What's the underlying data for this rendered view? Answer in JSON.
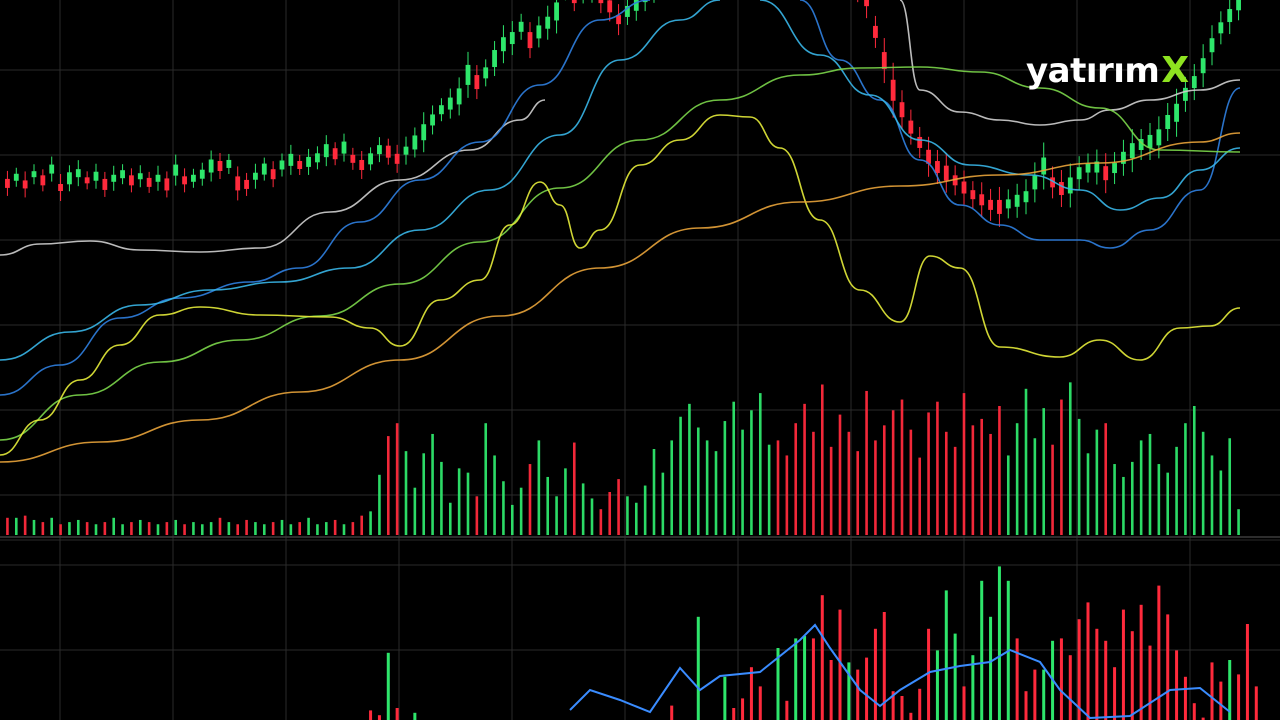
{
  "brand": {
    "name": "yatırım",
    "mark": "X",
    "name_color": "#ffffff",
    "mark_color": "#8ee320"
  },
  "colors": {
    "background": "#000000",
    "grid": "#2a2a2a",
    "up": "#2ee66b",
    "down": "#ff2a3c",
    "ma_white": "#cfcfcf",
    "ma_blue": "#2f7fe0",
    "ma_cyan": "#38b6e8",
    "ma_green": "#7bd64a",
    "ma_yellow": "#e6ec3a",
    "ma_orange": "#e8a33a",
    "osc_line": "#3a8cff"
  },
  "chart_data": {
    "type": "candlestick",
    "panels": [
      "price",
      "volume",
      "oscillator"
    ],
    "grid": true,
    "axes_labels": false,
    "candles_close": [
      280,
      286,
      279,
      289,
      283,
      294,
      276,
      285,
      290,
      283,
      287,
      279,
      285,
      289,
      283,
      287,
      281,
      285,
      279,
      293,
      283,
      285,
      289,
      297,
      297,
      299,
      280,
      279,
      287,
      294,
      289,
      298,
      303,
      298,
      301,
      305,
      312,
      309,
      315,
      304,
      298,
      304,
      313,
      311,
      304,
      312,
      320,
      330,
      342,
      352,
      358,
      365,
      386,
      379,
      388,
      402,
      416,
      422,
      433,
      420,
      428,
      437,
      448,
      476,
      462,
      470,
      475,
      461,
      453,
      440,
      448,
      455,
      462,
      474,
      477,
      486,
      501,
      512,
      531,
      548,
      560,
      585,
      602,
      611,
      629,
      642,
      645,
      633,
      624,
      621,
      608,
      598,
      592,
      568,
      540,
      510,
      482,
      460,
      428,
      400,
      371,
      352,
      335,
      320,
      306,
      296,
      290,
      283,
      276,
      269,
      264,
      259,
      257,
      260,
      263,
      267,
      281,
      297,
      281,
      275,
      278,
      290,
      295,
      296,
      290,
      295,
      305,
      312,
      318,
      321,
      325,
      340,
      349,
      367,
      379,
      395,
      415,
      432,
      444,
      455
    ],
    "candles_body": [
      9,
      7,
      8,
      6,
      10,
      9,
      7,
      12,
      8,
      6,
      9,
      11,
      7,
      8,
      10,
      6,
      9,
      7,
      12,
      11,
      8,
      7,
      9,
      13,
      10,
      8,
      14,
      9,
      7,
      11,
      10,
      9,
      12,
      8,
      10,
      9,
      13,
      11,
      12,
      8,
      10,
      11,
      9,
      12,
      10,
      8,
      14,
      16,
      11,
      9,
      12,
      16,
      20,
      14,
      11,
      17,
      14,
      12,
      10,
      16,
      13,
      12,
      18,
      15,
      12,
      11,
      14,
      10,
      12,
      9,
      11,
      13,
      10,
      12,
      14,
      15,
      13,
      16,
      12,
      18,
      21,
      14,
      17,
      20,
      23,
      18,
      14,
      13,
      16,
      11,
      12,
      14,
      10,
      18,
      13,
      15,
      19,
      14,
      12,
      17,
      21,
      15,
      13,
      11,
      14,
      12,
      15,
      10,
      12,
      9,
      11,
      10,
      14,
      9,
      12,
      11,
      14,
      17,
      10,
      13,
      16,
      12,
      9,
      11,
      14,
      10,
      12,
      15,
      11,
      13,
      16,
      14,
      18,
      13,
      12,
      15,
      14,
      11,
      13,
      12
    ],
    "candles_wick": [
      8,
      6,
      9,
      7,
      6,
      8,
      10,
      7,
      9,
      6,
      8,
      7,
      9,
      6,
      7,
      8,
      6,
      9,
      7,
      10,
      8,
      6,
      7,
      9,
      8,
      6,
      10,
      7,
      9,
      6,
      8,
      7,
      9,
      6,
      8,
      7,
      9,
      6,
      8,
      7,
      9,
      6,
      8,
      7,
      9,
      10,
      8,
      12,
      9,
      7,
      9,
      11,
      13,
      10,
      8,
      9,
      12,
      11,
      8,
      10,
      9,
      11,
      13,
      10,
      8,
      9,
      12,
      10,
      9,
      11,
      8,
      10,
      9,
      12,
      10,
      11,
      9,
      13,
      10,
      12,
      14,
      11,
      12,
      15,
      17,
      13,
      10,
      11,
      12,
      9,
      10,
      13,
      12,
      14,
      11,
      13,
      16,
      12,
      10,
      14,
      17,
      12,
      11,
      10,
      13,
      11,
      12,
      10,
      11,
      9,
      12,
      11,
      13,
      10,
      11,
      12,
      13,
      15,
      11,
      12,
      14,
      11,
      10,
      12,
      13,
      11,
      12,
      14,
      10,
      12,
      13,
      12,
      15,
      11,
      12,
      14,
      13,
      11,
      12,
      10
    ],
    "candles_dir": [
      "d",
      "u",
      "d",
      "u",
      "d",
      "u",
      "d",
      "u",
      "u",
      "d",
      "u",
      "d",
      "u",
      "u",
      "d",
      "u",
      "d",
      "u",
      "d",
      "u",
      "d",
      "u",
      "u",
      "u",
      "d",
      "u",
      "d",
      "d",
      "u",
      "u",
      "d",
      "u",
      "u",
      "d",
      "u",
      "u",
      "u",
      "d",
      "u",
      "d",
      "d",
      "u",
      "u",
      "d",
      "d",
      "u",
      "u",
      "u",
      "u",
      "u",
      "u",
      "u",
      "u",
      "d",
      "u",
      "u",
      "u",
      "u",
      "u",
      "d",
      "u",
      "u",
      "u",
      "u",
      "d",
      "u",
      "u",
      "d",
      "d",
      "d",
      "u",
      "u",
      "u",
      "u",
      "u",
      "u",
      "u",
      "u",
      "u",
      "u",
      "u",
      "u",
      "u",
      "u",
      "u",
      "u",
      "u",
      "d",
      "d",
      "d",
      "d",
      "d",
      "d",
      "d",
      "d",
      "d",
      "d",
      "d",
      "d",
      "d",
      "d",
      "d",
      "d",
      "d",
      "d",
      "d",
      "d",
      "d",
      "d",
      "d",
      "d",
      "d",
      "d",
      "u",
      "u",
      "u",
      "u",
      "u",
      "d",
      "d",
      "u",
      "u",
      "u",
      "u",
      "d",
      "u",
      "u",
      "u",
      "u",
      "u",
      "u",
      "u",
      "u",
      "u",
      "u",
      "u",
      "u",
      "u",
      "u",
      "u"
    ],
    "moving_averages": [
      {
        "color_key": "ma_white",
        "x": [
          0,
          40,
          90,
          140,
          200,
          260,
          330,
          400,
          470,
          520,
          545
        ],
        "y": [
          255,
          244,
          241,
          250,
          252,
          248,
          212,
          180,
          150,
          120,
          100
        ]
      },
      {
        "color_key": "ma_white",
        "x": [
          900,
          920,
          960,
          1000,
          1040,
          1080,
          1110,
          1150,
          1200,
          1240
        ],
        "y": [
          0,
          90,
          112,
          120,
          125,
          120,
          110,
          100,
          90,
          80
        ]
      },
      {
        "color_key": "ma_blue",
        "x": [
          0,
          60,
          120,
          180,
          250,
          300,
          360,
          420,
          480,
          540,
          600,
          650
        ],
        "y": [
          395,
          365,
          318,
          298,
          282,
          268,
          222,
          180,
          142,
          85,
          20,
          0
        ]
      },
      {
        "color_key": "ma_blue",
        "x": [
          800,
          840,
          880,
          920,
          960,
          1000,
          1040,
          1080,
          1110,
          1150,
          1200,
          1240
        ],
        "y": [
          0,
          60,
          100,
          160,
          205,
          225,
          240,
          240,
          248,
          230,
          190,
          88
        ]
      },
      {
        "color_key": "ma_cyan",
        "x": [
          0,
          70,
          140,
          210,
          280,
          350,
          420,
          490,
          560,
          620,
          680,
          720
        ],
        "y": [
          360,
          332,
          305,
          290,
          282,
          268,
          230,
          190,
          135,
          60,
          20,
          0
        ]
      },
      {
        "color_key": "ma_cyan",
        "x": [
          760,
          820,
          870,
          920,
          970,
          1030,
          1080,
          1120,
          1160,
          1200,
          1240
        ],
        "y": [
          0,
          55,
          95,
          140,
          165,
          175,
          190,
          210,
          198,
          170,
          148
        ]
      },
      {
        "color_key": "ma_green",
        "x": [
          0,
          80,
          160,
          240,
          320,
          400,
          480,
          560,
          640,
          720,
          800,
          860,
          920,
          980,
          1040,
          1100,
          1160,
          1240
        ],
        "y": [
          440,
          395,
          362,
          340,
          316,
          284,
          242,
          188,
          140,
          100,
          75,
          68,
          67,
          72,
          88,
          108,
          150,
          152
        ]
      },
      {
        "color_key": "ma_yellow",
        "x": [
          0,
          40,
          80,
          120,
          160,
          200,
          260,
          330,
          370,
          400,
          440,
          480,
          510,
          540,
          560,
          580,
          600,
          640,
          680,
          720,
          750,
          780,
          820,
          860,
          900,
          930,
          960,
          1000,
          1060,
          1100,
          1140,
          1180,
          1210,
          1240
        ],
        "y": [
          455,
          420,
          380,
          345,
          315,
          307,
          315,
          317,
          328,
          346,
          300,
          280,
          225,
          182,
          205,
          248,
          230,
          165,
          140,
          115,
          117,
          148,
          220,
          290,
          322,
          256,
          268,
          347,
          357,
          340,
          360,
          328,
          326,
          308
        ]
      },
      {
        "color_key": "ma_orange",
        "x": [
          0,
          100,
          200,
          300,
          400,
          500,
          600,
          700,
          800,
          900,
          1000,
          1100,
          1200,
          1240
        ],
        "y": [
          462,
          442,
          420,
          392,
          360,
          316,
          268,
          228,
          202,
          186,
          175,
          163,
          142,
          133
        ]
      }
    ],
    "volume": [
      8,
      8,
      9,
      7,
      6,
      8,
      5,
      6,
      7,
      6,
      5,
      6,
      8,
      5,
      6,
      7,
      6,
      5,
      6,
      7,
      5,
      6,
      5,
      6,
      8,
      6,
      5,
      7,
      6,
      5,
      6,
      7,
      5,
      6,
      8,
      5,
      6,
      7,
      5,
      6,
      9,
      11,
      28,
      46,
      52,
      39,
      22,
      38,
      47,
      34,
      15,
      31,
      29,
      18,
      52,
      37,
      25,
      14,
      22,
      33,
      44,
      27,
      18,
      31,
      43,
      24,
      17,
      12,
      20,
      26,
      18,
      15,
      23,
      40,
      29,
      44,
      55,
      61,
      50,
      44,
      39,
      53,
      62,
      49,
      58,
      66,
      42,
      44,
      37,
      52,
      61,
      48,
      70,
      41,
      56,
      48,
      39,
      67,
      44,
      51,
      58,
      63,
      49,
      36,
      57,
      62,
      48,
      41,
      66,
      51,
      54,
      47,
      60,
      37,
      52,
      68,
      45,
      59,
      42,
      63,
      71,
      54,
      38,
      49,
      52,
      33,
      27,
      34,
      44,
      47,
      33,
      29,
      41,
      52,
      60,
      48,
      37,
      30,
      45,
      12
    ],
    "oscillator": [
      0,
      0,
      0,
      0,
      0,
      0,
      0,
      0,
      0,
      0,
      0,
      0,
      0,
      0,
      0,
      0,
      0,
      0,
      0,
      0,
      0,
      0,
      0,
      0,
      0,
      0,
      0,
      0,
      0,
      0,
      0,
      0,
      0,
      0,
      0,
      0,
      0,
      0,
      0,
      0,
      0,
      -4,
      -2,
      28,
      -5,
      0,
      3,
      0,
      0,
      0,
      0,
      0,
      0,
      0,
      0,
      0,
      0,
      0,
      0,
      0,
      0,
      0,
      0,
      0,
      0,
      0,
      0,
      0,
      0,
      0,
      0,
      0,
      0,
      0,
      0,
      -6,
      0,
      0,
      43,
      0,
      0,
      18,
      -5,
      -9,
      -22,
      -14,
      0,
      30,
      -8,
      34,
      35,
      -34,
      -52,
      -25,
      -46,
      24,
      -21,
      -26,
      -38,
      -45,
      -12,
      -10,
      -3,
      -13,
      -38,
      29,
      54,
      36,
      -14,
      27,
      58,
      43,
      64,
      58,
      -34,
      -12,
      -21,
      21,
      33,
      -34,
      -27,
      -42,
      -49,
      -38,
      -33,
      -22,
      -46,
      -37,
      -48,
      -31,
      -56,
      -44,
      -29,
      -18,
      -7,
      -1,
      -24,
      -16,
      25,
      -19,
      -40,
      -14
    ],
    "osc_line": {
      "x": [
        570,
        590,
        620,
        650,
        680,
        700,
        720,
        760,
        800,
        815,
        830,
        860,
        880,
        900,
        930,
        960,
        990,
        1010,
        1040,
        1060,
        1090,
        1130,
        1170,
        1200,
        1230
      ],
      "y": [
        710,
        690,
        700,
        712,
        668,
        690,
        676,
        672,
        640,
        625,
        648,
        690,
        706,
        690,
        672,
        666,
        662,
        650,
        662,
        690,
        718,
        716,
        690,
        688,
        712
      ]
    },
    "yaxis_range_price": [
      0,
      450
    ],
    "legend": "none"
  }
}
